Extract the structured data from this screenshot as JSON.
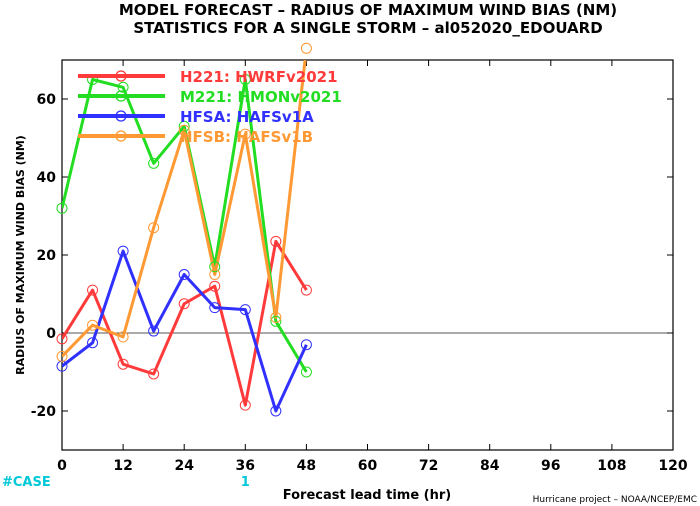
{
  "chart_data": {
    "type": "line",
    "title": "MODEL FORECAST – RADIUS OF MAXIMUM WIND BIAS (NM)",
    "subtitle": "STATISTICS FOR A SINGLE STORM – al052020_EDOUARD",
    "xlabel": "Forecast lead time (hr)",
    "ylabel": "RADIUS OF MAXIMUM WIND BIAS (NM)",
    "xlim": [
      0,
      120
    ],
    "ylim": [
      -30,
      70
    ],
    "xticks": [
      0,
      12,
      24,
      36,
      48,
      60,
      72,
      84,
      96,
      108,
      120
    ],
    "yticks": [
      -20,
      0,
      20,
      40,
      60
    ],
    "zero_line": true,
    "grid": false,
    "legend_position": "top-left",
    "series": [
      {
        "name": "H221: HWRFv2021",
        "color": "#ff3a3a",
        "x": [
          0,
          6,
          12,
          18,
          24,
          30,
          36,
          42,
          48
        ],
        "values": [
          -1.5,
          11,
          -8,
          -10.5,
          7.5,
          12,
          -18.5,
          23.5,
          11
        ]
      },
      {
        "name": "M221: HMONv2021",
        "color": "#22dd22",
        "x": [
          0,
          6,
          12,
          18,
          24,
          30,
          36,
          42,
          48
        ],
        "values": [
          32,
          65,
          63,
          43.5,
          53,
          17,
          65,
          3,
          -10
        ]
      },
      {
        "name": "HFSA: HAFSv1A",
        "color": "#3030ff",
        "x": [
          0,
          6,
          12,
          18,
          24,
          30,
          36,
          42,
          48
        ],
        "values": [
          -8.5,
          -2.5,
          21,
          0.5,
          15,
          6.5,
          6,
          -20,
          -3
        ]
      },
      {
        "name": "HFSB: HAFSv1B",
        "color": "#ff9933",
        "x": [
          0,
          6,
          12,
          18,
          24,
          30,
          36,
          42,
          48
        ],
        "values": [
          -6,
          2,
          -1,
          27,
          52,
          15,
          51,
          4,
          73
        ]
      }
    ]
  },
  "case_row": {
    "label": "#CASE",
    "entries": [
      {
        "x": 36,
        "count": "1"
      }
    ],
    "color": "#00c8d8"
  },
  "footer": {
    "credit": "Hurricane project – NOAA/NCEP/EMC"
  }
}
